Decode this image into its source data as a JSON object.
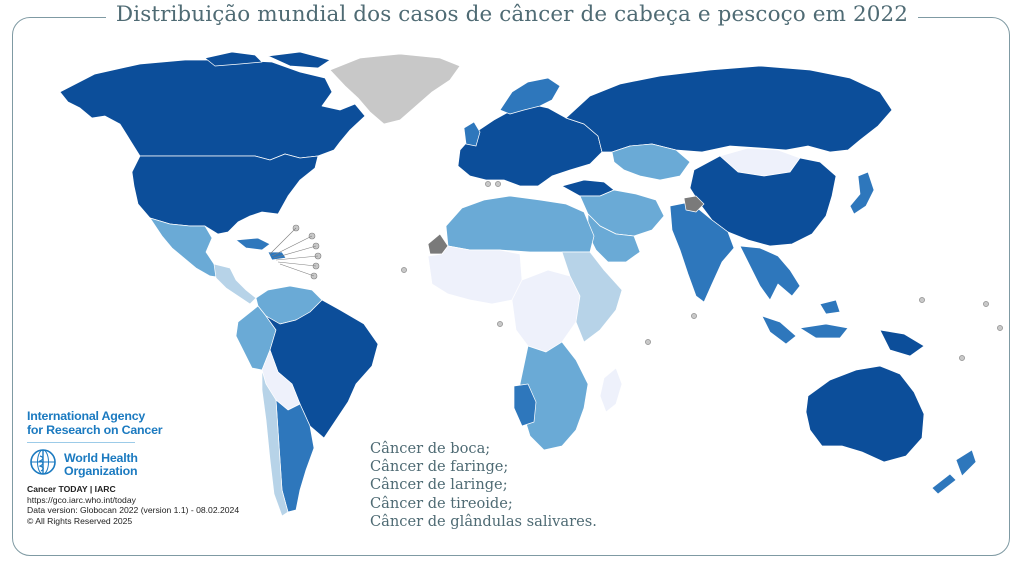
{
  "title": "Distribuição mundial dos casos de câncer de cabeça e pescoço em 2022",
  "legend": [
    "Câncer de boca;",
    "Câncer de faringe;",
    "Câncer de laringe;",
    "Câncer de tireoide;",
    "Câncer de glândulas salivares."
  ],
  "iarc": {
    "line1": "International Agency",
    "line2": "for Research on Cancer"
  },
  "who": {
    "line1": "World Health",
    "line2": "Organization"
  },
  "credits": {
    "source": "Cancer TODAY | IARC",
    "url": "https://gco.iarc.who.int/today",
    "version": "Data version: Globocan 2022 (version 1.1) - 08.02.2024",
    "rights": "© All Rights Reserved 2025"
  },
  "colors": {
    "very_high": "#0c4e9a",
    "high": "#2e77bc",
    "medium": "#6aaad6",
    "low": "#b7d3e8",
    "very_low": "#eef1fb",
    "no_data": "#c8c8c8",
    "not_applicable": "#7a7a7a",
    "frame": "#7f9aa3",
    "title_text": "#4f6b74",
    "brand_blue": "#1b7ac0"
  },
  "regions": [
    {
      "name": "Canada",
      "level": "very_high"
    },
    {
      "name": "United States of America",
      "level": "very_high"
    },
    {
      "name": "Greenland",
      "level": "no_data"
    },
    {
      "name": "Mexico",
      "level": "medium"
    },
    {
      "name": "Central America",
      "level": "low"
    },
    {
      "name": "Caribbean",
      "level": "high"
    },
    {
      "name": "Colombia",
      "level": "medium"
    },
    {
      "name": "Venezuela",
      "level": "medium"
    },
    {
      "name": "Peru",
      "level": "medium"
    },
    {
      "name": "Brazil",
      "level": "very_high"
    },
    {
      "name": "Bolivia",
      "level": "very_low"
    },
    {
      "name": "Paraguay",
      "level": "low"
    },
    {
      "name": "Argentina",
      "level": "high"
    },
    {
      "name": "Chile",
      "level": "low"
    },
    {
      "name": "Russian Federation",
      "level": "very_high"
    },
    {
      "name": "Europe",
      "level": "very_high"
    },
    {
      "name": "Scandinavia",
      "level": "high"
    },
    {
      "name": "Turkey",
      "level": "very_high"
    },
    {
      "name": "Kazakhstan",
      "level": "medium"
    },
    {
      "name": "Mongolia",
      "level": "very_low"
    },
    {
      "name": "China",
      "level": "very_high"
    },
    {
      "name": "Japan",
      "level": "high"
    },
    {
      "name": "India",
      "level": "high"
    },
    {
      "name": "Middle East",
      "level": "medium"
    },
    {
      "name": "Saudi Arabia",
      "level": "medium"
    },
    {
      "name": "Southeast Asia",
      "level": "high"
    },
    {
      "name": "Indonesia",
      "level": "high"
    },
    {
      "name": "Papua New Guinea",
      "level": "very_high"
    },
    {
      "name": "Australia",
      "level": "very_high"
    },
    {
      "name": "New Zealand",
      "level": "high"
    },
    {
      "name": "North Africa",
      "level": "medium"
    },
    {
      "name": "West Africa",
      "level": "very_low"
    },
    {
      "name": "Central Africa",
      "level": "very_low"
    },
    {
      "name": "East Africa",
      "level": "low"
    },
    {
      "name": "Southern Africa",
      "level": "medium"
    },
    {
      "name": "Namibia",
      "level": "high"
    },
    {
      "name": "Madagascar",
      "level": "very_low"
    },
    {
      "name": "Western Sahara",
      "level": "not_applicable"
    },
    {
      "name": "Kashmir",
      "level": "not_applicable"
    }
  ]
}
